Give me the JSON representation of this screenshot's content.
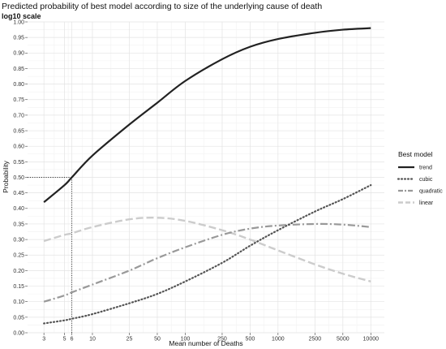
{
  "chart_data": {
    "type": "line",
    "title": "Predicted probability of best model according to size of the underlying cause of death",
    "subtitle": "log10 scale",
    "xlabel": "Mean number of Deaths",
    "ylabel": "Probability",
    "x_scale": "log10",
    "xlim": [
      2,
      14000
    ],
    "ylim": [
      0,
      1
    ],
    "x_ticks": [
      3,
      5,
      6,
      10,
      25,
      50,
      100,
      250,
      500,
      1000,
      2500,
      5000,
      10000
    ],
    "y_ticks": [
      0.0,
      0.05,
      0.1,
      0.15,
      0.2,
      0.25,
      0.3,
      0.35,
      0.4,
      0.45,
      0.5,
      0.55,
      0.6,
      0.65,
      0.7,
      0.75,
      0.8,
      0.85,
      0.9,
      0.95,
      1.0
    ],
    "y_tick_labels": [
      "0.00",
      "0.05",
      "0.10",
      "0.15",
      "0.20",
      "0.25",
      "0.30",
      "0.35",
      "0.40",
      "0.45",
      "0.50",
      "0.55",
      "0.60",
      "0.65",
      "0.70",
      "0.75",
      "0.80",
      "0.85",
      "0.90",
      "0.95",
      "1.00"
    ],
    "grid": true,
    "legend": {
      "title": "Best model",
      "position": "right"
    },
    "reference_point": {
      "x": 6,
      "y": 0.5
    },
    "series": [
      {
        "name": "trend",
        "color": "#222222",
        "style": "solid",
        "x": [
          3,
          5,
          6,
          10,
          25,
          50,
          100,
          250,
          500,
          1000,
          2500,
          5000,
          10000
        ],
        "y": [
          0.42,
          0.475,
          0.5,
          0.57,
          0.67,
          0.74,
          0.81,
          0.88,
          0.92,
          0.945,
          0.965,
          0.975,
          0.98
        ]
      },
      {
        "name": "cubic",
        "color": "#555555",
        "style": "dotted",
        "x": [
          3,
          5,
          6,
          10,
          25,
          50,
          100,
          250,
          500,
          1000,
          2500,
          5000,
          10000
        ],
        "y": [
          0.03,
          0.04,
          0.045,
          0.06,
          0.095,
          0.125,
          0.165,
          0.225,
          0.28,
          0.33,
          0.39,
          0.43,
          0.475
        ]
      },
      {
        "name": "quadratic",
        "color": "#999999",
        "style": "dashdot",
        "x": [
          3,
          5,
          6,
          10,
          25,
          50,
          100,
          250,
          500,
          1000,
          2500,
          5000,
          10000
        ],
        "y": [
          0.1,
          0.12,
          0.13,
          0.155,
          0.2,
          0.24,
          0.275,
          0.315,
          0.335,
          0.345,
          0.35,
          0.348,
          0.34
        ]
      },
      {
        "name": "linear",
        "color": "#cccccc",
        "style": "dashed",
        "x": [
          3,
          5,
          6,
          10,
          25,
          50,
          100,
          250,
          500,
          1000,
          2500,
          5000,
          10000
        ],
        "y": [
          0.295,
          0.315,
          0.32,
          0.34,
          0.365,
          0.37,
          0.36,
          0.33,
          0.3,
          0.265,
          0.22,
          0.19,
          0.165
        ]
      }
    ]
  }
}
